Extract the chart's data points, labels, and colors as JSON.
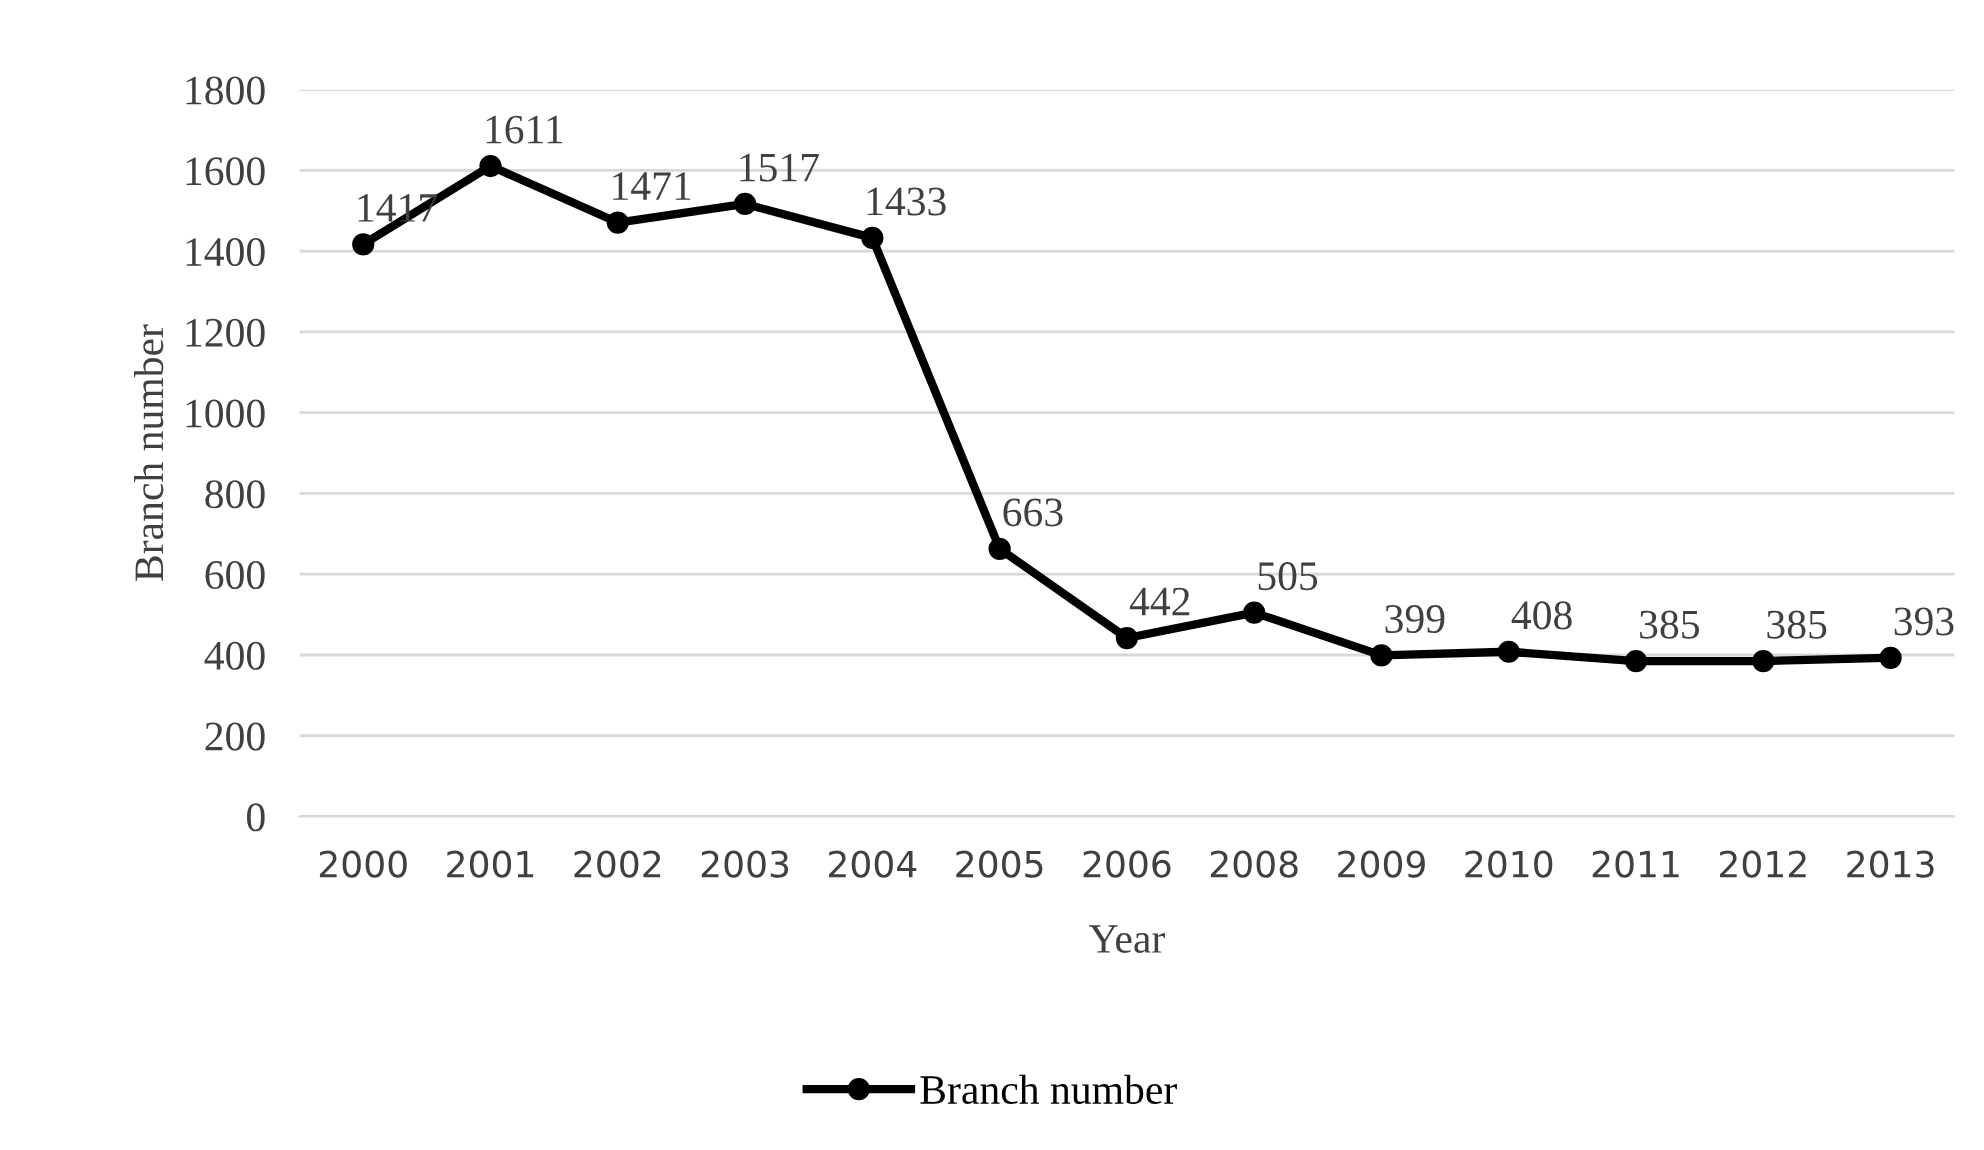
{
  "chart_data": {
    "type": "line",
    "xlabel": "Year",
    "ylabel": "Branch number",
    "categories": [
      "2000",
      "2001",
      "2002",
      "2003",
      "2004",
      "2005",
      "2006",
      "2008",
      "2009",
      "2010",
      "2011",
      "2012",
      "2013"
    ],
    "series": [
      {
        "name": "Branch number",
        "color": "#000000",
        "values": [
          1417,
          1611,
          1471,
          1517,
          1433,
          663,
          442,
          505,
          399,
          408,
          385,
          385,
          393
        ]
      }
    ],
    "ylim": [
      0,
      1800
    ],
    "yticks": [
      0,
      200,
      400,
      600,
      800,
      1000,
      1200,
      1400,
      1600,
      1800
    ],
    "grid": "y",
    "legend": "bottom",
    "marker": "circle",
    "line_style": "solid",
    "data_labels": true
  }
}
